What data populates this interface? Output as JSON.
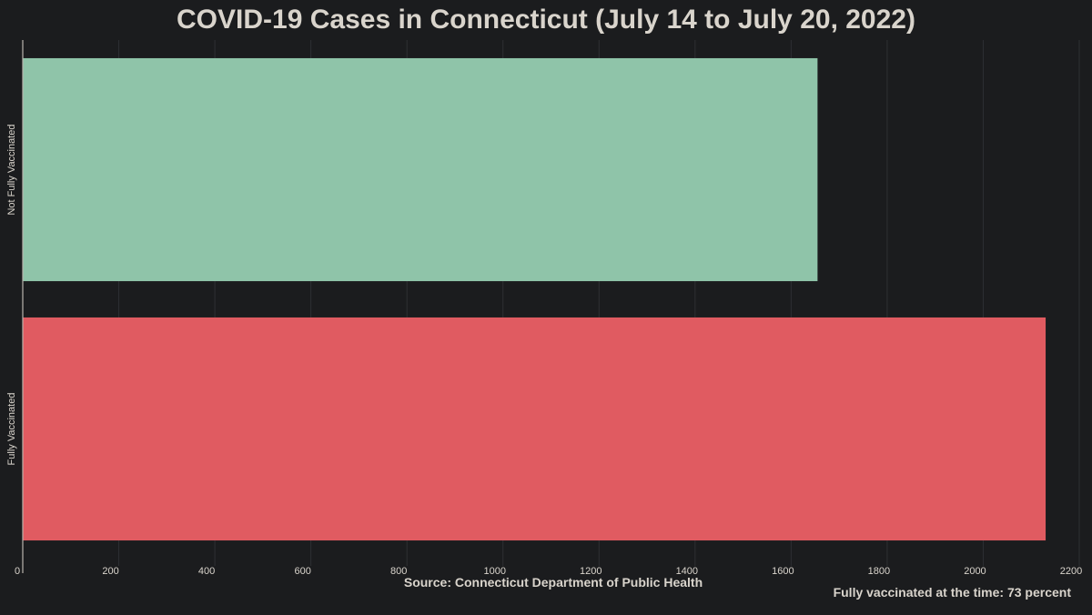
{
  "chart_data": {
    "type": "bar",
    "orientation": "horizontal",
    "title": "COVID-19 Cases in Connecticut (July 14 to July 20, 2022)",
    "categories": [
      "Not Fully Vaccinated",
      "Fully Vaccinated"
    ],
    "values": [
      1655,
      2130
    ],
    "colors": [
      "#8fc4a9",
      "#e05b61"
    ],
    "xlim": [
      0,
      2200
    ],
    "xticks": [
      0,
      200,
      400,
      600,
      800,
      1000,
      1200,
      1400,
      1600,
      1800,
      2000,
      2200
    ],
    "grid": true,
    "source": "Source: Connecticut Department of Public Health",
    "note": "Fully vaccinated at the time: 73 percent"
  },
  "theme": {
    "background": "#1b1c1e",
    "text": "#d9d4cc",
    "grid": "#2e3033",
    "axis": "#b9b4ad"
  }
}
